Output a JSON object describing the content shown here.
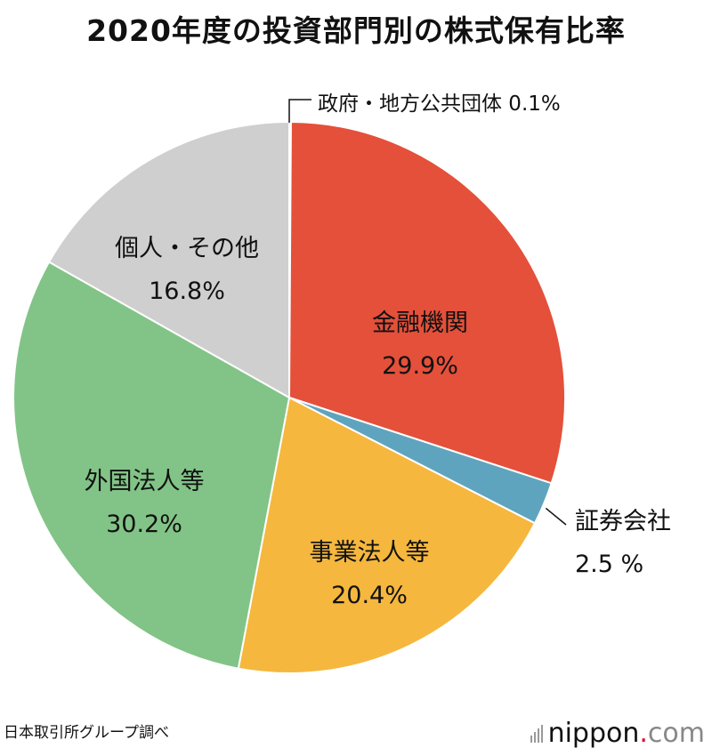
{
  "title": "2020年度の投資部門別の株式保有比率",
  "source": "日本取引所グループ調べ",
  "logo": {
    "name": "nippon",
    "dot": ".",
    "tld": "com"
  },
  "chart_data": {
    "type": "pie",
    "title": "2020年度の投資部門別の株式保有比率",
    "slices": [
      {
        "label": "政府・地方公共団体",
        "value": 0.1,
        "value_text": "0.1%",
        "color": "#e4503a"
      },
      {
        "label": "金融機関",
        "value": 29.9,
        "value_text": "29.9%",
        "color": "#e4503a"
      },
      {
        "label": "証券会社",
        "value": 2.5,
        "value_text": "2.5 %",
        "color": "#5fa4be"
      },
      {
        "label": "事業法人等",
        "value": 20.4,
        "value_text": "20.4%",
        "color": "#f5b73e"
      },
      {
        "label": "外国法人等",
        "value": 30.2,
        "value_text": "30.2%",
        "color": "#82c487"
      },
      {
        "label": "個人・その他",
        "value": 16.8,
        "value_text": "16.8%",
        "color": "#cfcfcf"
      }
    ]
  }
}
